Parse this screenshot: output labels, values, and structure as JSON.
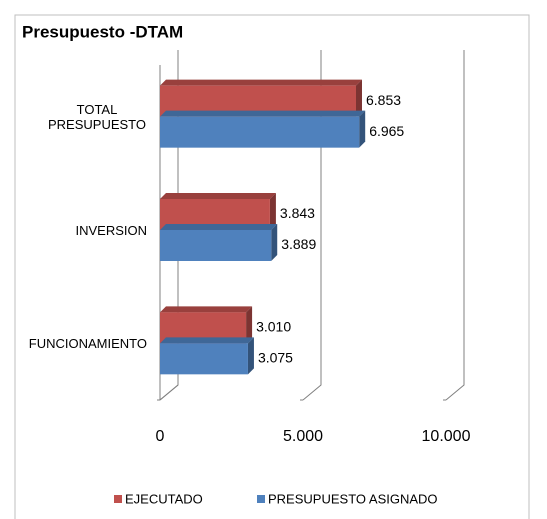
{
  "chart_data": {
    "type": "bar3d_horizontal",
    "title": "Presupuesto -DTAM",
    "categories": [
      "TOTAL PRESUPUESTO",
      "INVERSION",
      "FUNCIONAMIENTO"
    ],
    "series": [
      {
        "name": "EJECUTADO",
        "color": "#c0504d",
        "values": [
          6853,
          3843,
          3010
        ],
        "value_labels": [
          "6.853",
          "3.843",
          "3.010"
        ]
      },
      {
        "name": "PRESUPUESTO ASIGNADO",
        "color": "#4f81bd",
        "values": [
          6965,
          3889,
          3075
        ],
        "value_labels": [
          "6.965",
          "3.889",
          "3.075"
        ]
      }
    ],
    "xlim": [
      0,
      10000
    ],
    "xticks": [
      0,
      {
        "value": 5000,
        "label": "5.000"
      },
      {
        "value": 10000,
        "label": "10.000"
      }
    ],
    "grid": true,
    "legend": "bottom"
  }
}
